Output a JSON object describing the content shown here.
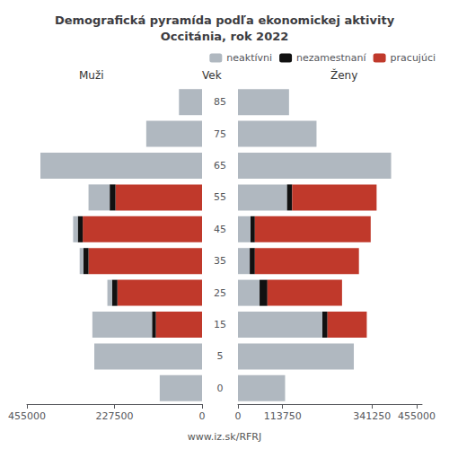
{
  "chart_data": [
    {
      "type": "bar",
      "title": "Demografická pyramída podľa ekonomickej aktivity\nOccitánia, rok 2022",
      "orientation": "horizontal",
      "stacked": true,
      "grid": false,
      "categories": [
        "0",
        "5",
        "15",
        "25",
        "35",
        "45",
        "55",
        "65",
        "75",
        "85"
      ],
      "xlabel": "Muži",
      "ylabel": "Vek",
      "annotations": [
        "www.iz.sk/RFRJ"
      ],
      "xlim": [
        0,
        455000
      ],
      "xticks": [
        0,
        227500,
        455000
      ],
      "series": [
        {
          "name": "pracujúci",
          "color": "#c0392b",
          "values": [
            0,
            0,
            120000,
            220000,
            295000,
            310000,
            225000,
            0,
            0,
            0
          ]
        },
        {
          "name": "nezamestnaní",
          "color": "#111111",
          "values": [
            0,
            0,
            10000,
            14000,
            13000,
            13000,
            15000,
            0,
            0,
            0
          ]
        },
        {
          "name": "neaktívni",
          "color": "#b0b8c0",
          "values": [
            110000,
            280000,
            155000,
            12000,
            10000,
            12000,
            55000,
            420000,
            145000,
            60000
          ]
        }
      ]
    },
    {
      "type": "bar",
      "orientation": "horizontal",
      "stacked": true,
      "grid": false,
      "legend": "upper right",
      "categories": [
        "0",
        "5",
        "15",
        "25",
        "35",
        "45",
        "55",
        "65",
        "75",
        "85"
      ],
      "xlabel": "Ženy",
      "xlim": [
        0,
        468750
      ],
      "xticks": [
        0,
        113750,
        341250,
        455000
      ],
      "series": [
        {
          "name": "neaktívni",
          "color": "#b0b8c0",
          "values": [
            120000,
            295000,
            215000,
            55000,
            30000,
            32000,
            125000,
            390000,
            200000,
            130000
          ]
        },
        {
          "name": "nezamestnaní",
          "color": "#111111",
          "values": [
            0,
            0,
            13000,
            20000,
            13000,
            11000,
            13000,
            0,
            0,
            0
          ]
        },
        {
          "name": "pracujúci",
          "color": "#c0392b",
          "values": [
            0,
            0,
            100000,
            190000,
            265000,
            295000,
            215000,
            0,
            0,
            0
          ]
        }
      ]
    }
  ]
}
